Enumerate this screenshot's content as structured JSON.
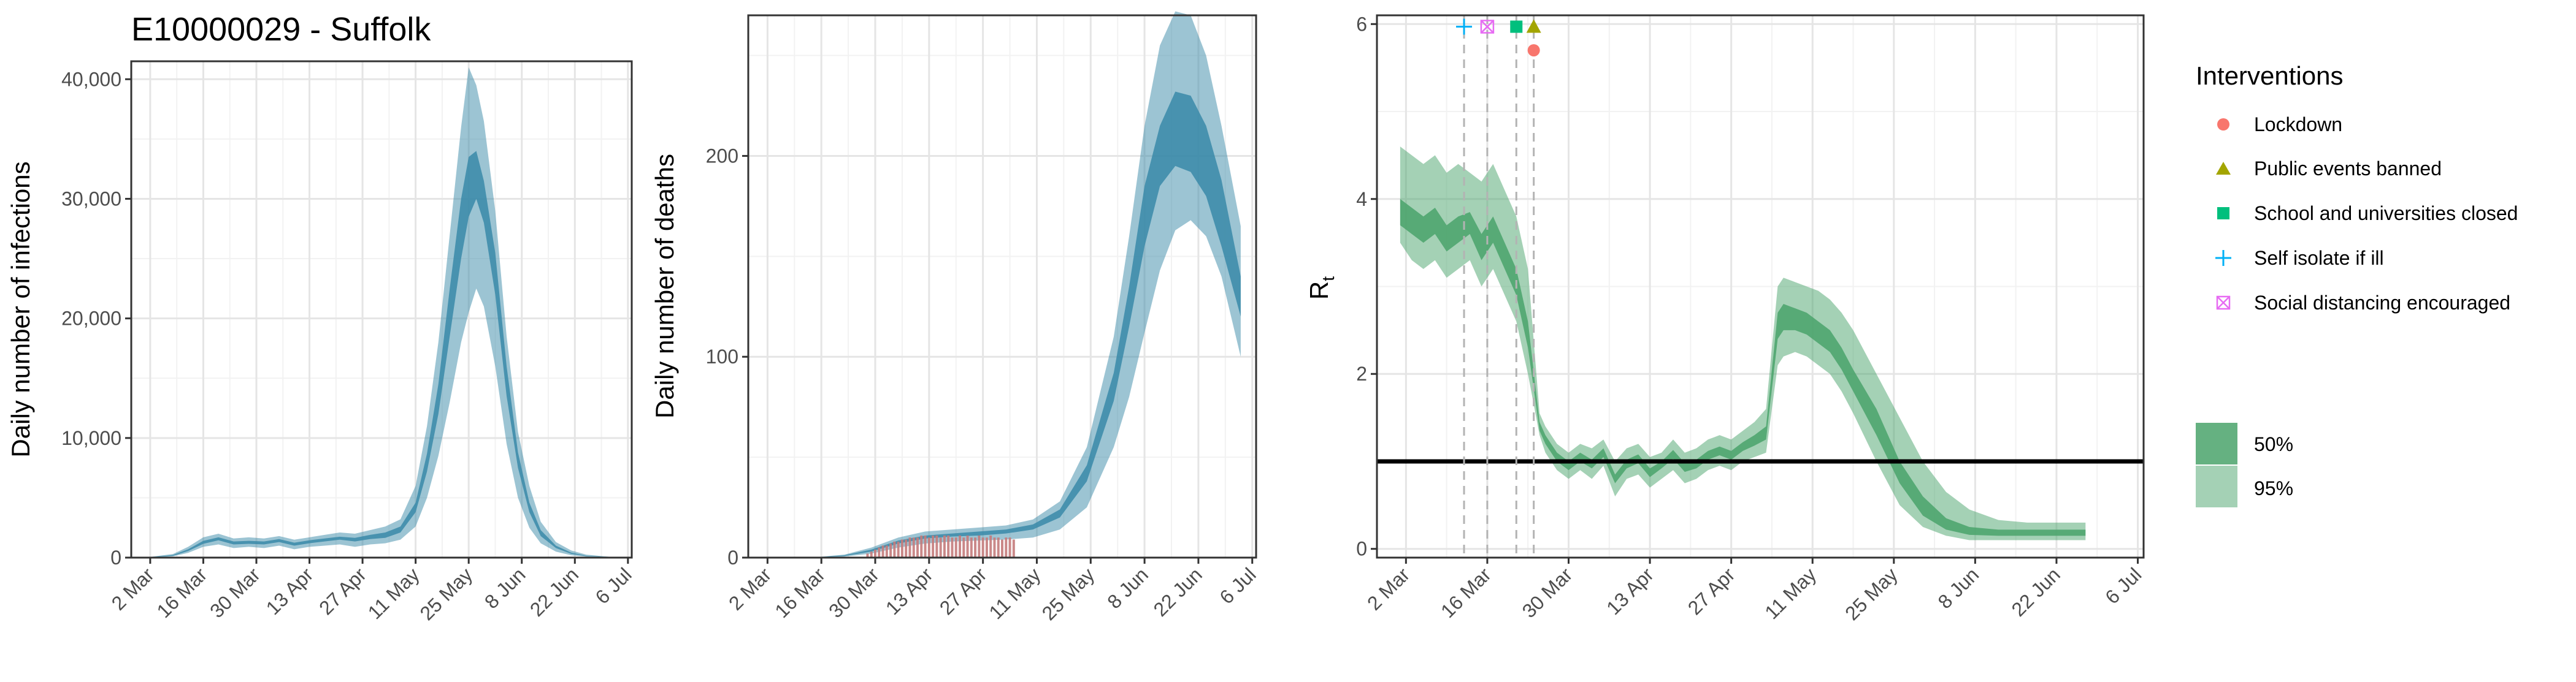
{
  "title": "E10000029 - Suffolk",
  "colors": {
    "infections_band": "#3a8aa8",
    "deaths_band": "#3a8aa8",
    "rt_band": "#4aa36b",
    "observed_deaths": "#c47b7b",
    "threshold_line": "#000000",
    "lockdown": "#f8766d",
    "public_events": "#a3a500",
    "schools": "#00bf7d",
    "self_isolate": "#00b0f6",
    "social_distancing": "#e76bf3"
  },
  "legend": {
    "title": "Interventions",
    "interventions": [
      {
        "label": "Lockdown",
        "icon": "circle-icon",
        "color": "#f8766d"
      },
      {
        "label": "Public events banned",
        "icon": "triangle-icon",
        "color": "#a3a500"
      },
      {
        "label": "School and universities closed",
        "icon": "square-icon",
        "color": "#00bf7d"
      },
      {
        "label": "Self isolate if ill",
        "icon": "plus-icon",
        "color": "#00b0f6"
      },
      {
        "label": "Social distancing encouraged",
        "icon": "boxed-x-icon",
        "color": "#e76bf3"
      }
    ],
    "bands": [
      {
        "label": "50%",
        "color": "#4aa36b",
        "opacity": 0.85
      },
      {
        "label": "95%",
        "color": "#4aa36b",
        "opacity": 0.5
      }
    ]
  },
  "chart_data": [
    {
      "type": "area",
      "name": "infections",
      "ylabel": "Daily number of infections",
      "xlim": [
        "2020-02-26",
        "2020-07-07"
      ],
      "ylim": [
        0,
        41500
      ],
      "x_ticks": [
        "2 Mar",
        "16 Mar",
        "30 Mar",
        "13 Apr",
        "27 Apr",
        "11 May",
        "25 May",
        "8 Jun",
        "22 Jun",
        "6 Jul"
      ],
      "y_ticks": [
        0,
        10000,
        20000,
        30000,
        40000
      ],
      "y_tick_labels": [
        "0",
        "10,000",
        "20,000",
        "30,000",
        "40,000"
      ],
      "grid": true,
      "x": [
        "2020-03-01",
        "2020-03-08",
        "2020-03-12",
        "2020-03-16",
        "2020-03-20",
        "2020-03-24",
        "2020-03-28",
        "2020-04-01",
        "2020-04-05",
        "2020-04-09",
        "2020-04-13",
        "2020-04-17",
        "2020-04-21",
        "2020-04-25",
        "2020-04-29",
        "2020-05-03",
        "2020-05-07",
        "2020-05-11",
        "2020-05-14",
        "2020-05-17",
        "2020-05-20",
        "2020-05-23",
        "2020-05-25",
        "2020-05-27",
        "2020-05-29",
        "2020-06-01",
        "2020-06-04",
        "2020-06-07",
        "2020-06-10",
        "2020-06-13",
        "2020-06-17",
        "2020-06-21",
        "2020-06-25",
        "2020-07-01"
      ],
      "series": [
        {
          "name": "95%",
          "lower": [
            0,
            100,
            400,
            900,
            1100,
            800,
            900,
            800,
            1000,
            700,
            900,
            1000,
            1100,
            900,
            1100,
            1200,
            1500,
            2600,
            5000,
            8500,
            13000,
            18000,
            20500,
            22500,
            21000,
            16000,
            9500,
            5000,
            2500,
            1200,
            500,
            200,
            80,
            20
          ],
          "upper": [
            20,
            300,
            900,
            1700,
            2000,
            1600,
            1700,
            1600,
            1800,
            1500,
            1700,
            1900,
            2100,
            2000,
            2300,
            2600,
            3200,
            6000,
            11000,
            18000,
            27000,
            36000,
            41000,
            39500,
            36500,
            29000,
            18500,
            10500,
            6000,
            3000,
            1300,
            600,
            250,
            80
          ]
        },
        {
          "name": "50%",
          "lower": [
            5,
            150,
            550,
            1150,
            1450,
            1100,
            1150,
            1100,
            1300,
            1000,
            1200,
            1350,
            1500,
            1350,
            1550,
            1650,
            2100,
            3800,
            7200,
            12000,
            18500,
            25000,
            28500,
            30000,
            28000,
            22000,
            13500,
            7500,
            3800,
            1800,
            800,
            320,
            120,
            40
          ],
          "upper": [
            10,
            220,
            700,
            1400,
            1700,
            1350,
            1400,
            1350,
            1550,
            1250,
            1450,
            1600,
            1750,
            1650,
            1900,
            2100,
            2600,
            4600,
            8700,
            14500,
            22500,
            30000,
            33500,
            34000,
            31500,
            25500,
            16000,
            8800,
            4600,
            2300,
            1000,
            420,
            160,
            50
          ]
        }
      ]
    },
    {
      "type": "area",
      "name": "deaths",
      "ylabel": "Daily number of deaths",
      "xlim": [
        "2020-02-26",
        "2020-07-07"
      ],
      "ylim": [
        0,
        270
      ],
      "x_ticks": [
        "2 Mar",
        "16 Mar",
        "30 Mar",
        "13 Apr",
        "27 Apr",
        "11 May",
        "25 May",
        "8 Jun",
        "22 Jun",
        "6 Jul"
      ],
      "y_ticks": [
        0,
        100,
        200
      ],
      "y_tick_labels": [
        "0",
        "100",
        "200"
      ],
      "grid": true,
      "x": [
        "2020-03-01",
        "2020-03-15",
        "2020-03-22",
        "2020-03-29",
        "2020-04-05",
        "2020-04-12",
        "2020-04-19",
        "2020-04-26",
        "2020-05-03",
        "2020-05-10",
        "2020-05-17",
        "2020-05-24",
        "2020-05-31",
        "2020-06-04",
        "2020-06-08",
        "2020-06-12",
        "2020-06-16",
        "2020-06-20",
        "2020-06-24",
        "2020-06-28",
        "2020-07-03"
      ],
      "series": [
        {
          "name": "95%",
          "lower": [
            0,
            0,
            0.5,
            2,
            5,
            7,
            8,
            8.5,
            9,
            10,
            14,
            25,
            55,
            80,
            112,
            143,
            163,
            168,
            160,
            140,
            100
          ],
          "upper": [
            0,
            0.3,
            1.5,
            5,
            10,
            13,
            14,
            15,
            16,
            19,
            28,
            55,
            110,
            160,
            215,
            255,
            272,
            270,
            250,
            215,
            165
          ]
        },
        {
          "name": "50%",
          "lower": [
            0,
            0.1,
            0.8,
            3,
            7,
            9.5,
            10.5,
            11,
            12,
            14,
            20,
            38,
            78,
            115,
            155,
            185,
            195,
            192,
            180,
            155,
            120
          ],
          "upper": [
            0,
            0.2,
            1.2,
            4,
            8.5,
            11,
            12,
            13,
            14,
            16.5,
            24,
            46,
            92,
            135,
            185,
            215,
            232,
            230,
            215,
            188,
            140
          ]
        }
      ],
      "observed": {
        "x_start": "2020-03-28",
        "x_end": "2020-05-05",
        "values": [
          2,
          3,
          4,
          5,
          6,
          6,
          7,
          8,
          8,
          9,
          9,
          10,
          10,
          10,
          11,
          11,
          10,
          11,
          11,
          10,
          11,
          11,
          10,
          10,
          11,
          10,
          11,
          10,
          10,
          11,
          10,
          10,
          11,
          10,
          10,
          9,
          10,
          10,
          9
        ]
      }
    },
    {
      "type": "area",
      "name": "rt",
      "ylabel": "R",
      "ylabel_subscript": "t",
      "xlim": [
        "2020-02-26",
        "2020-07-07"
      ],
      "ylim": [
        -0.1,
        6.1
      ],
      "x_ticks": [
        "2 Mar",
        "16 Mar",
        "30 Mar",
        "13 Apr",
        "27 Apr",
        "11 May",
        "25 May",
        "8 Jun",
        "22 Jun",
        "6 Jul"
      ],
      "y_ticks": [
        0,
        2,
        4,
        6
      ],
      "y_tick_labels": [
        "0",
        "2",
        "4",
        "6"
      ],
      "grid": true,
      "threshold": 1,
      "x": [
        "2020-03-01",
        "2020-03-03",
        "2020-03-05",
        "2020-03-07",
        "2020-03-09",
        "2020-03-11",
        "2020-03-13",
        "2020-03-15",
        "2020-03-17",
        "2020-03-19",
        "2020-03-21",
        "2020-03-23",
        "2020-03-25",
        "2020-03-26",
        "2020-03-28",
        "2020-03-30",
        "2020-04-01",
        "2020-04-03",
        "2020-04-05",
        "2020-04-07",
        "2020-04-09",
        "2020-04-11",
        "2020-04-13",
        "2020-04-15",
        "2020-04-17",
        "2020-04-19",
        "2020-04-21",
        "2020-04-23",
        "2020-04-25",
        "2020-04-27",
        "2020-04-29",
        "2020-05-01",
        "2020-05-03",
        "2020-05-05",
        "2020-05-06",
        "2020-05-08",
        "2020-05-10",
        "2020-05-12",
        "2020-05-14",
        "2020-05-16",
        "2020-05-18",
        "2020-05-22",
        "2020-05-26",
        "2020-05-30",
        "2020-06-03",
        "2020-06-07",
        "2020-06-12",
        "2020-06-17",
        "2020-06-22",
        "2020-06-27"
      ],
      "series": [
        {
          "name": "95%",
          "lower": [
            3.5,
            3.3,
            3.2,
            3.3,
            3.1,
            3.2,
            3.3,
            3.0,
            3.2,
            2.9,
            2.6,
            2.0,
            1.3,
            1.1,
            0.9,
            0.8,
            0.9,
            0.8,
            0.95,
            0.6,
            0.8,
            0.85,
            0.7,
            0.8,
            0.9,
            0.75,
            0.8,
            0.9,
            0.95,
            0.9,
            1.0,
            1.05,
            1.1,
            2.1,
            2.2,
            2.25,
            2.2,
            2.1,
            2.0,
            1.8,
            1.55,
            1.0,
            0.5,
            0.25,
            0.15,
            0.1,
            0.1,
            0.1,
            0.1,
            0.1
          ],
          "upper": [
            4.6,
            4.5,
            4.4,
            4.5,
            4.3,
            4.4,
            4.3,
            4.2,
            4.4,
            4.1,
            3.8,
            3.2,
            1.55,
            1.4,
            1.2,
            1.1,
            1.2,
            1.15,
            1.25,
            1.0,
            1.15,
            1.2,
            1.05,
            1.1,
            1.25,
            1.1,
            1.15,
            1.25,
            1.3,
            1.25,
            1.35,
            1.45,
            1.6,
            3.0,
            3.1,
            3.05,
            3.0,
            2.95,
            2.85,
            2.7,
            2.5,
            2.0,
            1.5,
            1.0,
            0.65,
            0.45,
            0.33,
            0.3,
            0.3,
            0.3
          ]
        },
        {
          "name": "50%",
          "lower": [
            3.7,
            3.6,
            3.5,
            3.6,
            3.4,
            3.5,
            3.6,
            3.3,
            3.5,
            3.2,
            2.9,
            2.3,
            1.35,
            1.2,
            1.0,
            0.9,
            1.0,
            0.92,
            1.05,
            0.75,
            0.92,
            0.98,
            0.82,
            0.92,
            1.03,
            0.88,
            0.92,
            1.02,
            1.07,
            1.02,
            1.12,
            1.18,
            1.25,
            2.4,
            2.5,
            2.5,
            2.45,
            2.35,
            2.25,
            2.05,
            1.8,
            1.3,
            0.75,
            0.38,
            0.22,
            0.16,
            0.15,
            0.15,
            0.15,
            0.15
          ],
          "upper": [
            4.0,
            3.9,
            3.8,
            3.9,
            3.7,
            3.8,
            3.85,
            3.6,
            3.8,
            3.5,
            3.2,
            2.6,
            1.45,
            1.3,
            1.1,
            1.0,
            1.1,
            1.02,
            1.15,
            0.85,
            1.02,
            1.08,
            0.92,
            1.0,
            1.13,
            0.98,
            1.02,
            1.12,
            1.17,
            1.12,
            1.22,
            1.3,
            1.4,
            2.7,
            2.8,
            2.75,
            2.7,
            2.6,
            2.5,
            2.3,
            2.05,
            1.6,
            1.0,
            0.6,
            0.35,
            0.25,
            0.22,
            0.22,
            0.22,
            0.22
          ]
        }
      ],
      "interventions": [
        {
          "label": "Self isolate if ill",
          "date": "2020-03-12",
          "y": 5.97,
          "marker": "plus",
          "color": "#00b0f6"
        },
        {
          "label": "Social distancing encouraged",
          "date": "2020-03-16",
          "y": 5.97,
          "marker": "boxed-x",
          "color": "#e76bf3"
        },
        {
          "label": "School and universities closed",
          "date": "2020-03-21",
          "y": 5.97,
          "marker": "square",
          "color": "#00bf7d"
        },
        {
          "label": "Public events banned",
          "date": "2020-03-24",
          "y": 5.97,
          "marker": "triangle",
          "color": "#a3a500"
        },
        {
          "label": "Lockdown",
          "date": "2020-03-24",
          "y": 5.7,
          "marker": "circle",
          "color": "#f8766d"
        }
      ]
    }
  ]
}
